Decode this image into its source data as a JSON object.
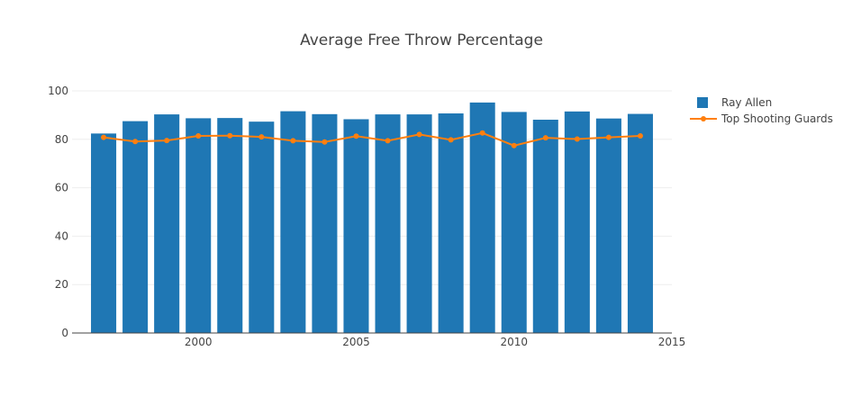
{
  "chart_data": {
    "type": "bar",
    "title": "Average Free Throw Percentage",
    "xlabel": "",
    "ylabel": "",
    "xlim": [
      1996,
      2015
    ],
    "ylim": [
      0,
      100
    ],
    "x_ticks": [
      2000,
      2005,
      2010,
      2015
    ],
    "y_ticks": [
      0,
      20,
      40,
      60,
      80,
      100
    ],
    "grid": "horizontal",
    "legend_position": "right",
    "x": [
      1997,
      1998,
      1999,
      2000,
      2001,
      2002,
      2003,
      2004,
      2005,
      2006,
      2007,
      2008,
      2009,
      2010,
      2011,
      2012,
      2013,
      2014
    ],
    "series": [
      {
        "name": "Ray Allen",
        "type": "bar",
        "color": "#1f77b4",
        "values": [
          82.4,
          87.5,
          90.3,
          88.7,
          88.8,
          87.3,
          91.6,
          90.4,
          88.3,
          90.3,
          90.3,
          90.7,
          95.2,
          91.3,
          88.1,
          91.5,
          88.6,
          90.5
        ]
      },
      {
        "name": "Top Shooting Guards",
        "type": "line",
        "color": "#ff7f0e",
        "values": [
          80.8,
          79.1,
          79.5,
          81.4,
          81.5,
          81.0,
          79.4,
          78.9,
          81.3,
          79.4,
          82.0,
          79.8,
          82.6,
          77.4,
          80.6,
          80.1,
          80.8,
          81.4
        ]
      }
    ]
  }
}
